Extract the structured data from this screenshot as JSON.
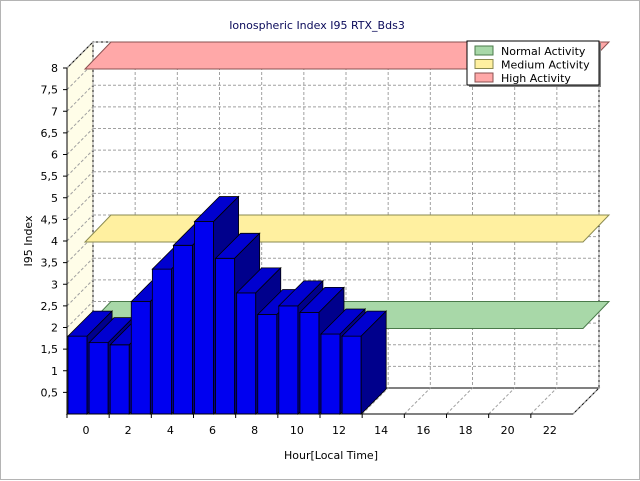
{
  "chart_data": {
    "type": "bar",
    "title": "Ionospheric Index I95 RTX_Bds3",
    "xlabel": "Hour[Local Time]",
    "ylabel": "I95 Index",
    "xlim": [
      0,
      24
    ],
    "ylim": [
      0,
      8
    ],
    "x_ticks": [
      "0",
      "2",
      "4",
      "6",
      "8",
      "10",
      "12",
      "14",
      "16",
      "18",
      "20",
      "22"
    ],
    "y_ticks": [
      "0,5",
      "1",
      "1,5",
      "2",
      "2,5",
      "3",
      "3,5",
      "4",
      "4,5",
      "5",
      "5,5",
      "6",
      "6,5",
      "7",
      "7,5",
      "8"
    ],
    "grid": true,
    "legend_position": "top-right",
    "x": [
      0,
      1,
      2,
      3,
      4,
      5,
      6,
      7,
      8,
      9,
      10,
      11,
      12,
      13
    ],
    "series": [
      {
        "values": [
          1.8,
          1.65,
          1.6,
          2.6,
          3.35,
          3.9,
          4.45,
          3.6,
          2.8,
          2.3,
          2.5,
          2.35,
          1.85,
          1.8
        ],
        "color": "#0000f0"
      }
    ],
    "bands": [
      {
        "name": "Normal Activity",
        "value": 2.0,
        "color": "#a8d8a8",
        "edge": "#4a7a4a"
      },
      {
        "name": "Medium Activity",
        "value": 4.0,
        "color": "#fff0a0",
        "edge": "#8a8a50"
      },
      {
        "name": "High Activity",
        "value": 8.0,
        "color": "#ffa8a8",
        "edge": "#8a5050"
      }
    ],
    "colors": {
      "bar_front": "#0000f0",
      "bar_side": "#00008c",
      "bar_top": "#0000d0",
      "wall": "#fffde8",
      "grid": "#a0a0a0"
    }
  }
}
